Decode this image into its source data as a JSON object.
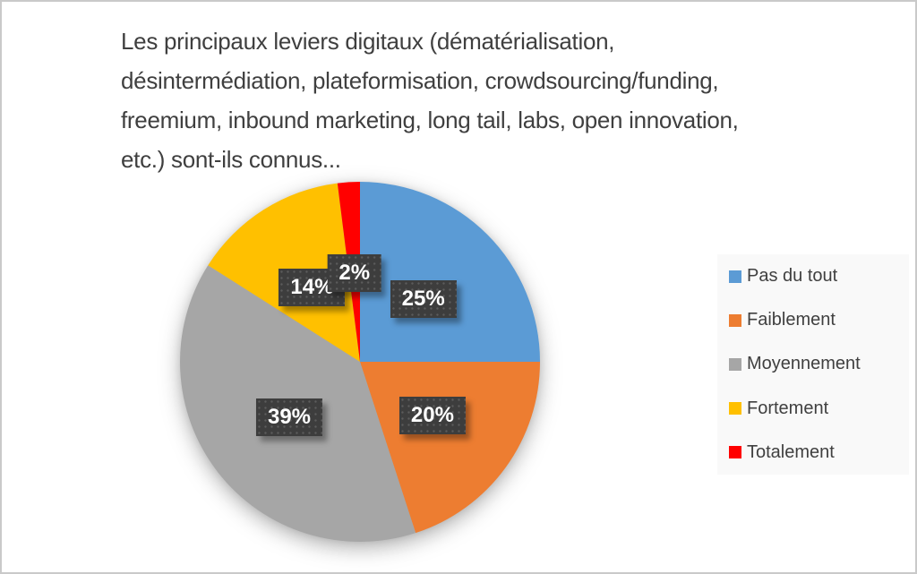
{
  "frame": {
    "background": "#ffffff",
    "border_color": "#c9c9c9"
  },
  "header": {
    "title_lines": [
      "Les principaux leviers digitaux (dématérialisation,",
      "désintermédiation, plateformisation, crowdsourcing/funding,",
      "freemium, inbound marketing, long tail, labs, open innovation,",
      "etc.) sont-ils connus..."
    ]
  },
  "chart_data": {
    "type": "pie",
    "title": "Les principaux leviers digitaux (dématérialisation, désintermédiation, plateformisation, crowdsourcing/funding, freemium, inbound marketing, long tail, labs, open innovation, etc.) sont-ils connus...",
    "categories": [
      "Pas du tout",
      "Faiblement",
      "Moyennement",
      "Fortement",
      "Totalement"
    ],
    "values": [
      25,
      20,
      39,
      14,
      2
    ],
    "data_labels": [
      "25%",
      "20%",
      "39%",
      "14%",
      "2%"
    ],
    "colors": [
      "#5B9BD5",
      "#ED7D31",
      "#A6A6A6",
      "#FFC000",
      "#FF0000"
    ],
    "start_angle_deg": 0,
    "direction": "clockwise",
    "legend_position": "right",
    "label_style": {
      "background": "#3D3D3D",
      "text_color": "#FFFFFF"
    }
  }
}
